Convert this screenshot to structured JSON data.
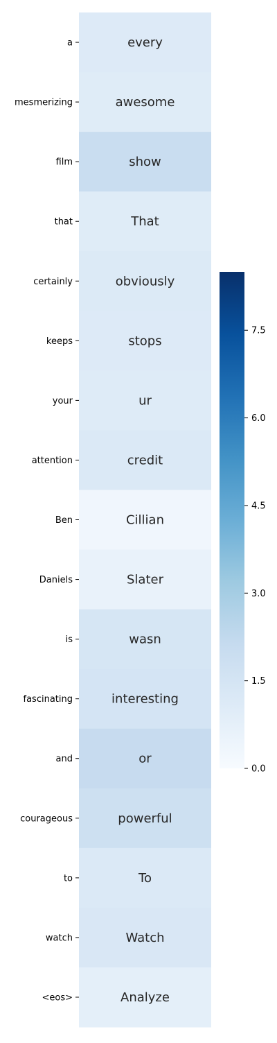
{
  "chart_data": {
    "type": "heatmap",
    "title": "",
    "xlabel": "",
    "ylabel": "",
    "colormap": "Blues",
    "row_labels": [
      "a",
      "mesmerizing",
      "film",
      "that",
      "certainly",
      "keeps",
      "your",
      "attention",
      "Ben",
      "Daniels",
      "is",
      "fascinating",
      "and",
      "courageous",
      "to",
      "watch",
      "<eos>"
    ],
    "cell_text": [
      "every",
      "awesome",
      "show",
      "That",
      "obviously",
      "stops",
      "ur",
      "credit",
      "Cillian",
      "Slater",
      "wasn",
      "interesting",
      "or",
      "powerful",
      "To",
      "Watch",
      "Analyze"
    ],
    "values": [
      1.1,
      1.0,
      2.0,
      1.0,
      1.15,
      1.1,
      1.05,
      1.2,
      0.3,
      0.6,
      1.4,
      1.5,
      2.1,
      1.8,
      1.2,
      1.3,
      0.8
    ],
    "vmin": 0,
    "vmax": 8.5,
    "colorbar": {
      "ticks": [
        0.0,
        1.5,
        3.0,
        4.5,
        6.0,
        7.5
      ],
      "tick_labels": [
        "0.0",
        "1.5",
        "3.0",
        "4.5",
        "6.0",
        "7.5"
      ]
    }
  }
}
